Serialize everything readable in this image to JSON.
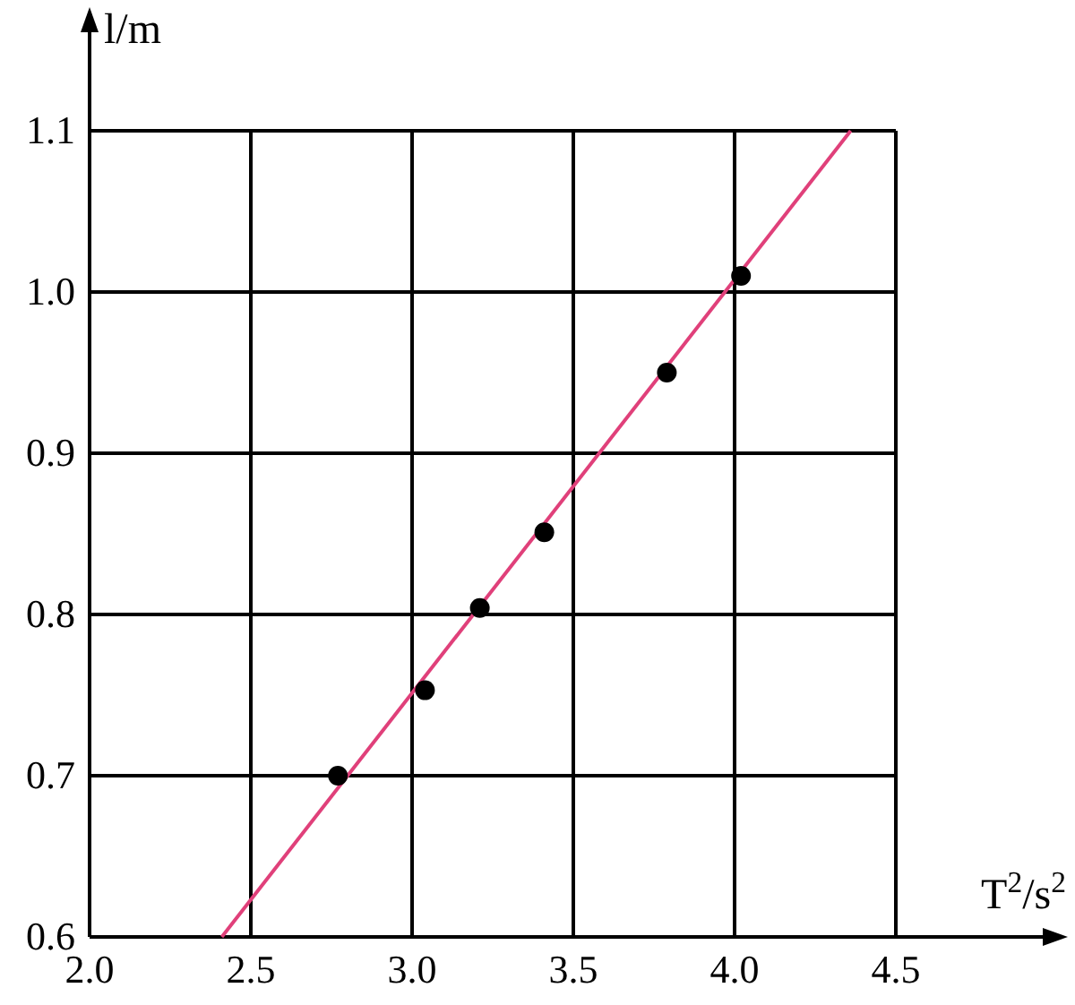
{
  "chart_data": {
    "type": "scatter",
    "xlabel": "T$^{2}$/s$^{2}$",
    "ylabel": "l/m",
    "xlim": [
      2.0,
      5.0
    ],
    "ylim": [
      0.6,
      1.17
    ],
    "xticks": [
      {
        "value": 2,
        "label": "2.0"
      },
      2.5,
      {
        "value": 3,
        "label": "3.0"
      },
      3.5,
      {
        "value": 4,
        "label": "4.0"
      },
      4.5
    ],
    "yticks": [
      0.6,
      0.7,
      0.8,
      0.9,
      {
        "value": 1,
        "label": "1.0"
      },
      1.1
    ],
    "grid": true,
    "marker": "circle",
    "series": [
      {
        "color": "#000000",
        "x": [
          2.77,
          3.04,
          3.21,
          3.41,
          3.79,
          4.02
        ],
        "values": [
          0.7,
          0.753,
          0.804,
          0.851,
          0.95,
          1.01
        ]
      },
      {
        "type": "line",
        "color": "#e0407a",
        "marker": "none",
        "line_style": "solid",
        "x": [
          2.41,
          4.36
        ],
        "values": [
          0.6,
          1.1
        ]
      }
    ]
  }
}
